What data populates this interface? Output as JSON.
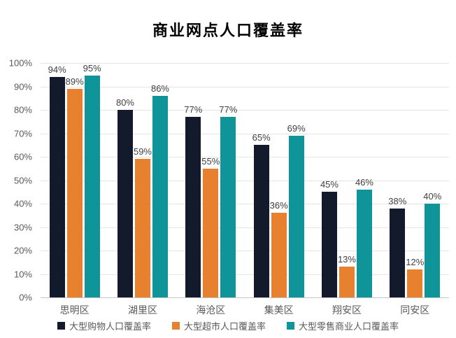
{
  "title": "商业网点人口覆盖率",
  "chart_data": {
    "type": "bar",
    "title": "商业网点人口覆盖率",
    "categories": [
      "思明区",
      "湖里区",
      "海沧区",
      "集美区",
      "翔安区",
      "同安区"
    ],
    "series": [
      {
        "name": "大型购物人口覆盖率",
        "color": "#131a2c",
        "values": [
          94,
          80,
          77,
          65,
          45,
          38
        ]
      },
      {
        "name": "大型超市人口覆盖率",
        "color": "#e8812f",
        "values": [
          89,
          59,
          55,
          36,
          13,
          12
        ]
      },
      {
        "name": "大型零售商业人口覆盖率",
        "color": "#0f9499",
        "values": [
          95,
          86,
          77,
          69,
          46,
          40
        ]
      }
    ],
    "xlabel": "",
    "ylabel": "",
    "ylim": [
      0,
      100
    ],
    "ytick_step": 10,
    "ytick_labels": [
      "0%",
      "10%",
      "20%",
      "30%",
      "40%",
      "50%",
      "60%",
      "70%",
      "80%",
      "90%",
      "100%"
    ],
    "value_label_suffix": "%",
    "grid": true,
    "legend_position": "bottom"
  },
  "colors": {
    "grid": "#e4e4e4",
    "axis_line": "#c6c6c6",
    "tick_text": "#595959",
    "value_label_text": "#404040",
    "title_text": "#000000",
    "background": "#ffffff"
  }
}
